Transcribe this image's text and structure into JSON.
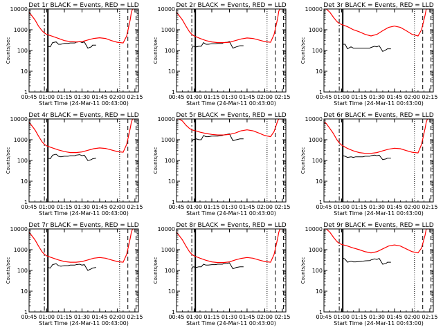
{
  "chart_data": {
    "type": "line",
    "layout": "3x3 grid of panels",
    "y_scale": "log",
    "ylim": [
      1,
      10000
    ],
    "y_ticks": [
      "1",
      "10",
      "100",
      "1000",
      "10000"
    ],
    "x_ticks": [
      "00:45",
      "01:00",
      "01:15",
      "01:30",
      "01:45",
      "02:00",
      "02:15"
    ],
    "xlabel": "Start Time (24-Mar-11 00:43:00)",
    "ylabel": "Counts/sec",
    "grid": false,
    "legend": "in panel titles (BLACK = Events, RED = LLD)",
    "colors": {
      "events": "#000000",
      "lld": "#ff0000",
      "axes": "#000000"
    },
    "panels": [
      {
        "title": "Det 1r BLACK = Events, RED = LLD",
        "time_min": [
          44,
          47,
          50,
          53,
          56,
          58,
          60,
          65,
          70,
          75,
          80,
          85,
          90,
          95,
          100,
          105,
          110,
          115,
          120,
          125,
          128,
          131,
          132,
          133,
          135
        ],
        "lld": [
          8000,
          5000,
          3000,
          1500,
          900,
          700,
          600,
          480,
          380,
          300,
          270,
          260,
          270,
          320,
          380,
          410,
          380,
          300,
          250,
          230,
          500,
          3000,
          7000,
          10000,
          10000
        ],
        "events_time_min": [
          61,
          63,
          65,
          68,
          70,
          72,
          75,
          78,
          80,
          84,
          85,
          88,
          90,
          92,
          95,
          98,
          99,
          102
        ],
        "events": [
          160,
          150,
          240,
          260,
          200,
          200,
          220,
          220,
          230,
          230,
          250,
          270,
          240,
          260,
          130,
          150,
          180,
          180
        ]
      },
      {
        "title": "Det 2r BLACK = Events, RED = LLD",
        "time_min": [
          44,
          47,
          50,
          53,
          56,
          58,
          60,
          65,
          70,
          75,
          80,
          85,
          90,
          95,
          100,
          105,
          110,
          115,
          120,
          125,
          128,
          131,
          132,
          133,
          135
        ],
        "lld": [
          8000,
          5000,
          3000,
          1500,
          800,
          600,
          500,
          380,
          300,
          260,
          240,
          240,
          250,
          300,
          360,
          400,
          380,
          320,
          270,
          250,
          600,
          3500,
          8000,
          10000,
          10000
        ],
        "events_time_min": [
          58,
          59,
          62,
          64,
          66,
          68,
          70,
          72,
          75,
          78,
          80,
          84,
          85,
          88,
          90,
          93,
          96,
          99,
          102
        ],
        "events": [
          120,
          160,
          150,
          160,
          160,
          240,
          200,
          200,
          210,
          210,
          220,
          220,
          240,
          250,
          270,
          130,
          150,
          170,
          170
        ]
      },
      {
        "title": "Det 3r BLACK = Events, RED = LLD",
        "time_min": [
          44,
          47,
          50,
          53,
          56,
          58,
          60,
          65,
          70,
          75,
          80,
          85,
          90,
          95,
          100,
          105,
          110,
          115,
          120,
          125,
          128,
          131,
          132,
          133,
          135
        ],
        "lld": [
          10000,
          10000,
          7000,
          4000,
          2500,
          2000,
          1800,
          1400,
          1000,
          800,
          600,
          500,
          600,
          900,
          1300,
          1500,
          1300,
          900,
          600,
          500,
          1000,
          5000,
          10000,
          10000,
          10000
        ],
        "events_time_min": [
          61,
          63,
          65,
          68,
          70,
          72,
          75,
          78,
          80,
          84,
          85,
          88,
          90,
          92,
          95,
          98,
          99,
          102
        ],
        "events": [
          200,
          200,
          120,
          150,
          130,
          130,
          130,
          130,
          130,
          130,
          140,
          160,
          150,
          170,
          90,
          110,
          120,
          120
        ]
      },
      {
        "title": "Det 4r BLACK = Events, RED = LLD",
        "time_min": [
          44,
          47,
          50,
          53,
          56,
          58,
          60,
          65,
          70,
          75,
          80,
          85,
          90,
          95,
          100,
          105,
          110,
          115,
          120,
          125,
          128,
          131,
          132,
          133,
          135
        ],
        "lld": [
          8000,
          5000,
          3000,
          1500,
          800,
          600,
          500,
          400,
          320,
          270,
          240,
          240,
          260,
          310,
          370,
          400,
          380,
          320,
          270,
          250,
          600,
          3500,
          7000,
          10000,
          10000
        ],
        "events_time_min": [
          61,
          63,
          65,
          68,
          70,
          72,
          75,
          78,
          80,
          84,
          85,
          88,
          90,
          92,
          95,
          98,
          99,
          102
        ],
        "events": [
          130,
          120,
          180,
          200,
          160,
          150,
          160,
          160,
          170,
          170,
          180,
          190,
          170,
          180,
          100,
          110,
          120,
          130
        ]
      },
      {
        "title": "Det 5r BLACK = Events, RED = LLD",
        "time_min": [
          44,
          47,
          50,
          53,
          56,
          58,
          60,
          65,
          70,
          75,
          80,
          85,
          90,
          95,
          100,
          105,
          110,
          115,
          120,
          125,
          128,
          131,
          132,
          133,
          135
        ],
        "lld": [
          10000,
          10000,
          8000,
          5000,
          3500,
          3000,
          2800,
          2300,
          2000,
          1800,
          1700,
          1700,
          1800,
          2100,
          2700,
          3000,
          2700,
          2100,
          1600,
          1400,
          2500,
          8000,
          10000,
          10000,
          10000
        ],
        "events_time_min": [
          58,
          59,
          62,
          64,
          66,
          68,
          70,
          72,
          75,
          78,
          80,
          84,
          85,
          88,
          90,
          93,
          96,
          99,
          102
        ],
        "events": [
          800,
          1000,
          1100,
          1000,
          1000,
          1600,
          1400,
          1400,
          1500,
          1500,
          1500,
          1600,
          1700,
          1800,
          1900,
          900,
          1000,
          1100,
          1100
        ]
      },
      {
        "title": "Det 6r BLACK = Events, RED = LLD",
        "time_min": [
          44,
          47,
          50,
          53,
          56,
          58,
          60,
          65,
          70,
          75,
          80,
          85,
          90,
          95,
          100,
          105,
          110,
          115,
          120,
          125,
          128,
          131,
          132,
          133,
          135
        ],
        "lld": [
          8000,
          6000,
          3500,
          2000,
          1000,
          700,
          550,
          380,
          290,
          240,
          220,
          220,
          240,
          290,
          350,
          390,
          370,
          300,
          250,
          230,
          600,
          3500,
          7000,
          10000,
          10000
        ],
        "events_time_min": [
          61,
          63,
          65,
          68,
          70,
          72,
          75,
          78,
          80,
          84,
          85,
          88,
          90,
          92,
          95,
          98,
          99,
          102
        ],
        "events": [
          170,
          160,
          140,
          150,
          140,
          150,
          150,
          150,
          160,
          160,
          170,
          180,
          170,
          180,
          110,
          120,
          130,
          130
        ]
      },
      {
        "title": "Det 7r BLACK = Events, RED = LLD",
        "time_min": [
          44,
          47,
          50,
          53,
          56,
          58,
          60,
          65,
          70,
          75,
          80,
          85,
          90,
          95,
          100,
          105,
          110,
          115,
          120,
          125,
          128,
          131,
          132,
          133,
          135
        ],
        "lld": [
          8000,
          5000,
          3000,
          1500,
          800,
          600,
          500,
          400,
          320,
          270,
          250,
          250,
          270,
          320,
          390,
          420,
          390,
          320,
          270,
          250,
          600,
          3500,
          7000,
          10000,
          10000
        ],
        "events_time_min": [
          61,
          63,
          65,
          68,
          70,
          72,
          75,
          78,
          80,
          84,
          85,
          88,
          90,
          92,
          95,
          98,
          99,
          102
        ],
        "events": [
          140,
          130,
          190,
          210,
          170,
          160,
          170,
          170,
          180,
          180,
          190,
          200,
          180,
          190,
          100,
          120,
          130,
          140
        ]
      },
      {
        "title": "Det 8r BLACK = Events, RED = LLD",
        "time_min": [
          44,
          47,
          50,
          53,
          56,
          58,
          60,
          65,
          70,
          75,
          80,
          85,
          90,
          95,
          100,
          105,
          110,
          115,
          120,
          125,
          128,
          131,
          132,
          133,
          135
        ],
        "lld": [
          8000,
          5000,
          3000,
          1500,
          800,
          600,
          500,
          390,
          310,
          260,
          240,
          240,
          260,
          320,
          380,
          420,
          390,
          320,
          270,
          250,
          600,
          3500,
          7000,
          10000,
          10000
        ],
        "events_time_min": [
          58,
          59,
          62,
          64,
          66,
          68,
          70,
          72,
          75,
          78,
          80,
          84,
          85,
          88,
          90,
          93,
          96,
          99,
          102
        ],
        "events": [
          120,
          150,
          140,
          150,
          150,
          200,
          180,
          180,
          190,
          190,
          200,
          200,
          210,
          220,
          230,
          120,
          140,
          150,
          150
        ]
      },
      {
        "title": "Det 9r BLACK = Events, RED = LLD",
        "time_min": [
          44,
          47,
          50,
          53,
          56,
          58,
          60,
          65,
          70,
          75,
          80,
          85,
          90,
          95,
          100,
          105,
          110,
          115,
          120,
          125,
          128,
          131,
          132,
          133,
          135
        ],
        "lld": [
          10000,
          10000,
          7000,
          4000,
          2500,
          2000,
          1800,
          1500,
          1200,
          1000,
          800,
          700,
          800,
          1100,
          1500,
          1700,
          1500,
          1100,
          800,
          700,
          1200,
          5000,
          10000,
          10000,
          10000
        ],
        "events_time_min": [
          61,
          63,
          65,
          68,
          70,
          72,
          75,
          78,
          80,
          84,
          85,
          88,
          90,
          92,
          95,
          98,
          99,
          102
        ],
        "events": [
          400,
          350,
          250,
          280,
          260,
          260,
          270,
          280,
          290,
          300,
          320,
          360,
          340,
          380,
          200,
          220,
          250,
          250
        ]
      }
    ]
  }
}
